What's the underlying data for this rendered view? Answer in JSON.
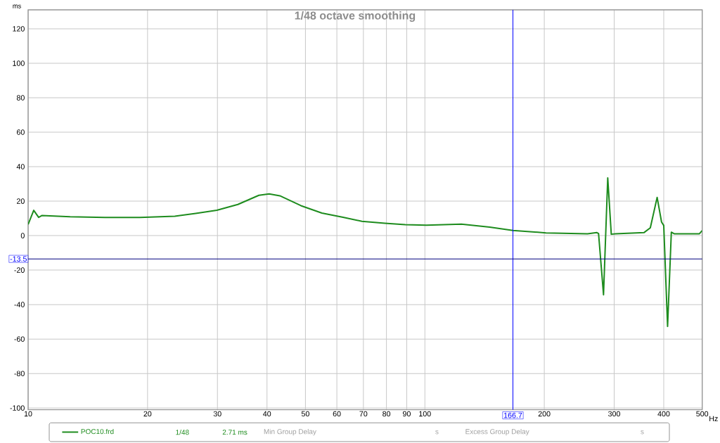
{
  "chart_data": {
    "type": "line",
    "title": "1/48 octave smoothing",
    "xlabel": "Hz",
    "ylabel": "ms",
    "log": "x",
    "grid": true,
    "legend": "bottom",
    "marker": "none",
    "line_style": "solid",
    "xlim": [
      10,
      500
    ],
    "ylim": [
      -101,
      131
    ],
    "xticks": [
      10,
      20,
      30,
      40,
      50,
      60,
      70,
      80,
      90,
      100,
      200,
      300,
      400,
      500
    ],
    "yticks": [
      -100,
      -80,
      -60,
      -40,
      -20,
      0,
      20,
      40,
      60,
      80,
      100,
      120
    ],
    "series": [
      {
        "name": "POC10.frd",
        "color": "#1e8c1e",
        "x": [
          10,
          10.33,
          10.63,
          10.84,
          12.76,
          15.63,
          19.12,
          23.43,
          26.45,
          29.9,
          33.78,
          38.16,
          40.5,
          43.1,
          48.7,
          55.0,
          62.2,
          69.4,
          79.3,
          89.3,
          100.9,
          123.6,
          145.7,
          166.7,
          202,
          257,
          271,
          274,
          282,
          289,
          295,
          302,
          357,
          370,
          385,
          395,
          400,
          409,
          418,
          425,
          492,
          500
        ],
        "values": [
          6.5,
          14.7,
          10.6,
          11.7,
          10.9,
          10.5,
          10.5,
          11.3,
          12.9,
          14.7,
          18.1,
          23.4,
          24.2,
          23.1,
          17.4,
          13.1,
          10.6,
          8.3,
          7.2,
          6.4,
          6.1,
          6.7,
          4.9,
          3.0,
          1.6,
          1.1,
          1.8,
          1.2,
          -34.3,
          33.5,
          0.8,
          1.1,
          1.8,
          4.5,
          22.2,
          7.9,
          5.9,
          -52.7,
          2.0,
          1.1,
          1.1,
          2.9
        ]
      }
    ],
    "ref_lines": [
      {
        "axis": "x",
        "value": 166.7,
        "label": "166.7",
        "color": "#0000ff"
      },
      {
        "axis": "y",
        "value": -13.5,
        "label": "-13.5",
        "color": "#000080"
      }
    ],
    "annotations": [
      "1/48",
      "2.71 ms",
      "Min Group Delay",
      "s",
      "Excess Group Delay",
      "s"
    ]
  }
}
